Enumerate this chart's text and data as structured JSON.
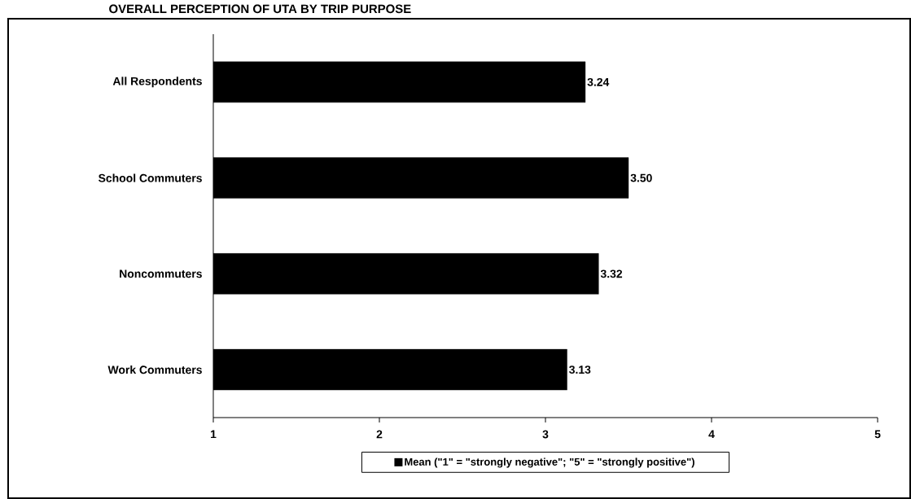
{
  "chart_data": {
    "type": "bar",
    "orientation": "horizontal",
    "title": "OVERALL PERCEPTION OF UTA BY TRIP PURPOSE",
    "categories": [
      "All Respondents",
      "School Commuters",
      "Noncommuters",
      "Work Commuters"
    ],
    "series": [
      {
        "name": "Mean (\"1\" = \"strongly negative\";  \"5\" = \"strongly positive\")",
        "color": "#000000",
        "values": [
          3.24,
          3.5,
          3.32,
          3.13
        ],
        "value_labels": [
          "3.24",
          "3.50",
          "3.32",
          "3.13"
        ]
      }
    ],
    "xlim": [
      1,
      5
    ],
    "xticks": [
      1,
      2,
      3,
      4,
      5
    ],
    "grid": false,
    "legend": "bottom"
  }
}
